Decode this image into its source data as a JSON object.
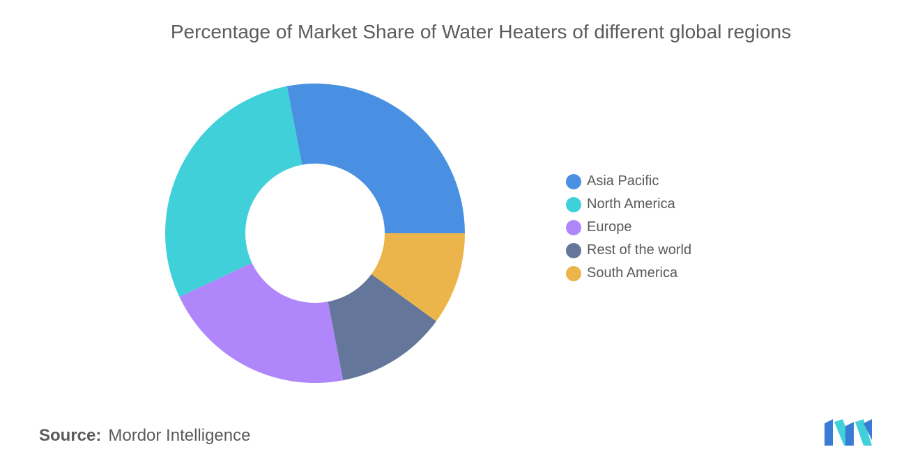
{
  "chart_data": {
    "type": "pie",
    "title": "Percentage of Market Share of Water Heaters of different global regions",
    "series": [
      {
        "name": "Asia Pacific",
        "value": 28,
        "color": "#4a90e2"
      },
      {
        "name": "North America",
        "value": 29,
        "color": "#40d0da"
      },
      {
        "name": "Europe",
        "value": 21,
        "color": "#b086fb"
      },
      {
        "name": "Rest of the world",
        "value": 12,
        "color": "#647699"
      },
      {
        "name": "South America",
        "value": 10,
        "color": "#ecb54b"
      }
    ],
    "legend_position": "right",
    "donut": true
  },
  "source": {
    "label": "Source:",
    "text": "Mordor Intelligence"
  },
  "logo": {
    "icon": "mordor-intelligence-logo",
    "colors": [
      "#3a7bd5",
      "#40d0da"
    ]
  }
}
